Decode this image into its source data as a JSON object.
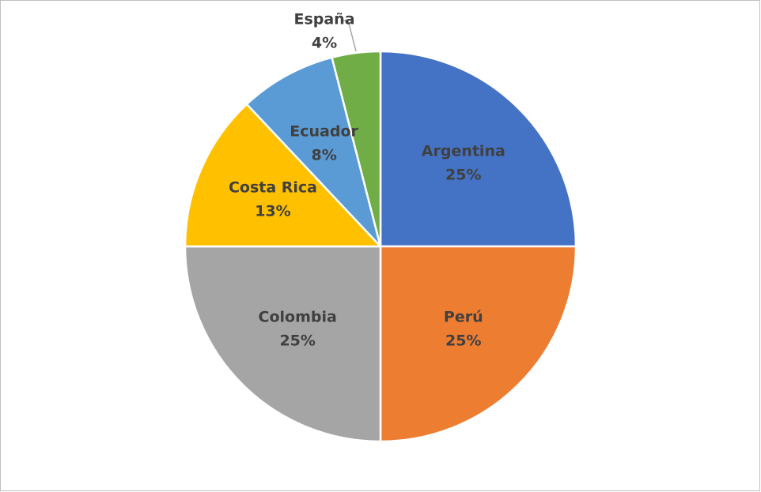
{
  "chart_data": {
    "type": "pie",
    "categories": [
      "Argentina",
      "Perú",
      "Colombia",
      "Costa Rica",
      "Ecuador",
      "España"
    ],
    "values": [
      25,
      25,
      25,
      13,
      8,
      4
    ],
    "value_labels": [
      "25%",
      "25%",
      "25%",
      "13%",
      "8%",
      "4%"
    ],
    "colors": [
      "#4472c4",
      "#ed7d31",
      "#a5a5a5",
      "#ffc000",
      "#5b9bd5",
      "#70ad47"
    ]
  }
}
